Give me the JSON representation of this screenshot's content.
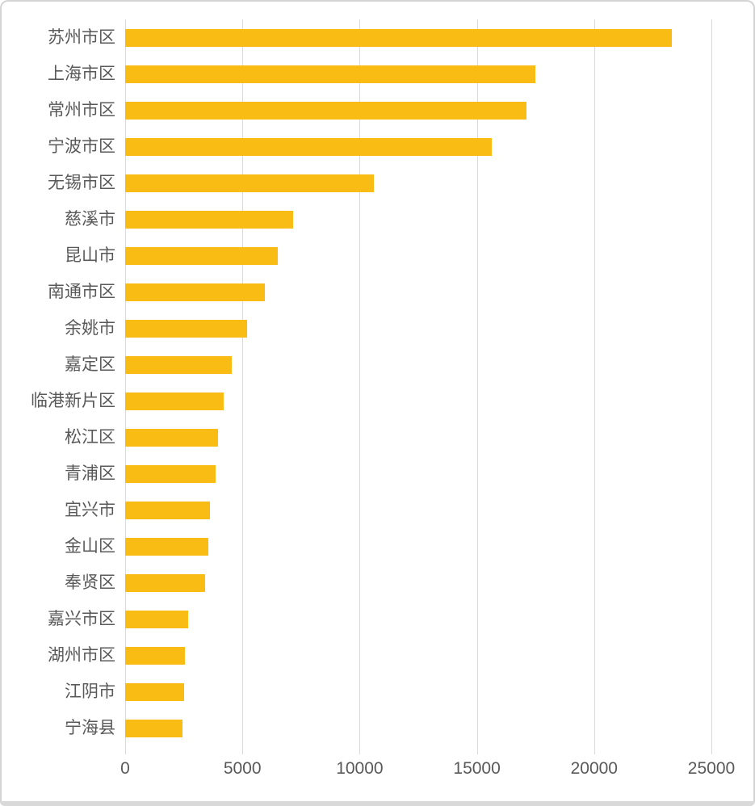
{
  "colors": {
    "bar": "#f9bc15",
    "gridline": "#d9d9d9",
    "axis_text": "#595959",
    "frame_border": "#d4d4d4",
    "background": "#ffffff"
  },
  "chart_data": {
    "type": "bar",
    "orientation": "horizontal",
    "title": "",
    "xlabel": "",
    "ylabel": "",
    "categories": [
      "苏州市区",
      "上海市区",
      "常州市区",
      "宁波市区",
      "无锡市区",
      "慈溪市",
      "昆山市",
      "南通市区",
      "余姚市",
      "嘉定区",
      "临港新片区",
      "松江区",
      "青浦区",
      "宜兴市",
      "金山区",
      "奉贤区",
      "嘉兴市区",
      "湖州市区",
      "江阴市",
      "宁海县"
    ],
    "values": [
      23300,
      17500,
      17100,
      15650,
      10600,
      7150,
      6500,
      5950,
      5200,
      4550,
      4200,
      3950,
      3850,
      3600,
      3550,
      3400,
      2700,
      2550,
      2500,
      2450
    ],
    "xlim": [
      0,
      25000
    ],
    "x_ticks": [
      0,
      5000,
      10000,
      15000,
      20000,
      25000
    ],
    "x_tick_labels": [
      "0",
      "5000",
      "10000",
      "15000",
      "20000",
      "25000"
    ],
    "grid": "vertical",
    "legend_position": "none",
    "sort_order": "descending"
  }
}
